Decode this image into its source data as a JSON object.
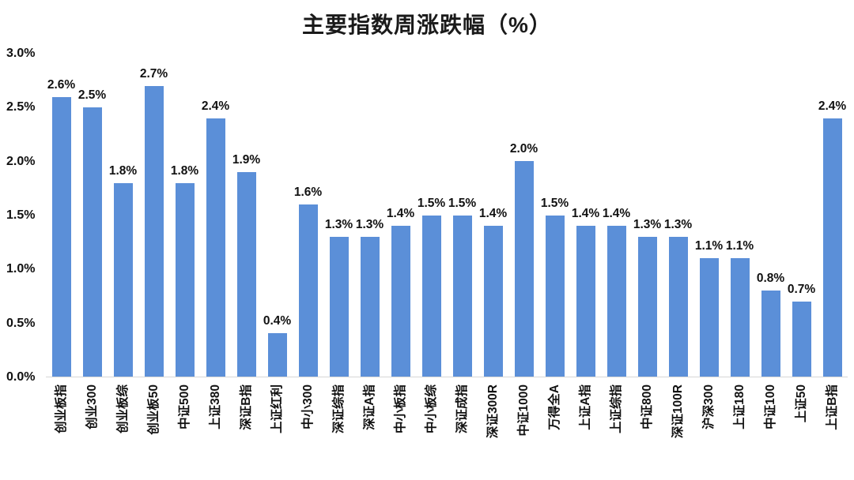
{
  "title": "主要指数周涨跌幅（%）",
  "chart_data": {
    "type": "bar",
    "title": "主要指数周涨跌幅（%）",
    "categories": [
      "创业板指",
      "创业300",
      "创业板综",
      "创业板50",
      "中证500",
      "上证380",
      "深证B指",
      "上证红利",
      "中小300",
      "深证综指",
      "深证A指",
      "中小板指",
      "中小板综",
      "深证成指",
      "深证300R",
      "中证1000",
      "万得全A",
      "上证A指",
      "上证综指",
      "中证800",
      "深证100R",
      "沪深300",
      "上证180",
      "中证100",
      "上证50",
      "上证B指"
    ],
    "values": [
      2.6,
      2.5,
      1.8,
      2.7,
      1.8,
      2.4,
      1.9,
      0.4,
      1.6,
      1.3,
      1.3,
      1.4,
      1.5,
      1.5,
      1.4,
      2.0,
      1.5,
      1.4,
      1.4,
      1.3,
      1.3,
      1.1,
      1.1,
      0.8,
      0.7,
      2.4
    ],
    "value_labels": [
      "2.6%",
      "2.5%",
      "1.8%",
      "2.7%",
      "1.8%",
      "2.4%",
      "1.9%",
      "0.4%",
      "1.6%",
      "1.3%",
      "1.3%",
      "1.4%",
      "1.5%",
      "1.5%",
      "1.4%",
      "2.0%",
      "1.5%",
      "1.4%",
      "1.4%",
      "1.3%",
      "1.3%",
      "1.1%",
      "1.1%",
      "0.8%",
      "0.7%",
      "2.4%"
    ],
    "y_ticks": [
      "0.0%",
      "0.5%",
      "1.0%",
      "1.5%",
      "2.0%",
      "2.5%",
      "3.0%"
    ],
    "ylim": [
      0,
      3.0
    ],
    "xlabel": "",
    "ylabel": "",
    "grid": false,
    "legend": "none",
    "bar_color": "#5b8fd8",
    "axis_line_color": "#d6d6d6"
  }
}
